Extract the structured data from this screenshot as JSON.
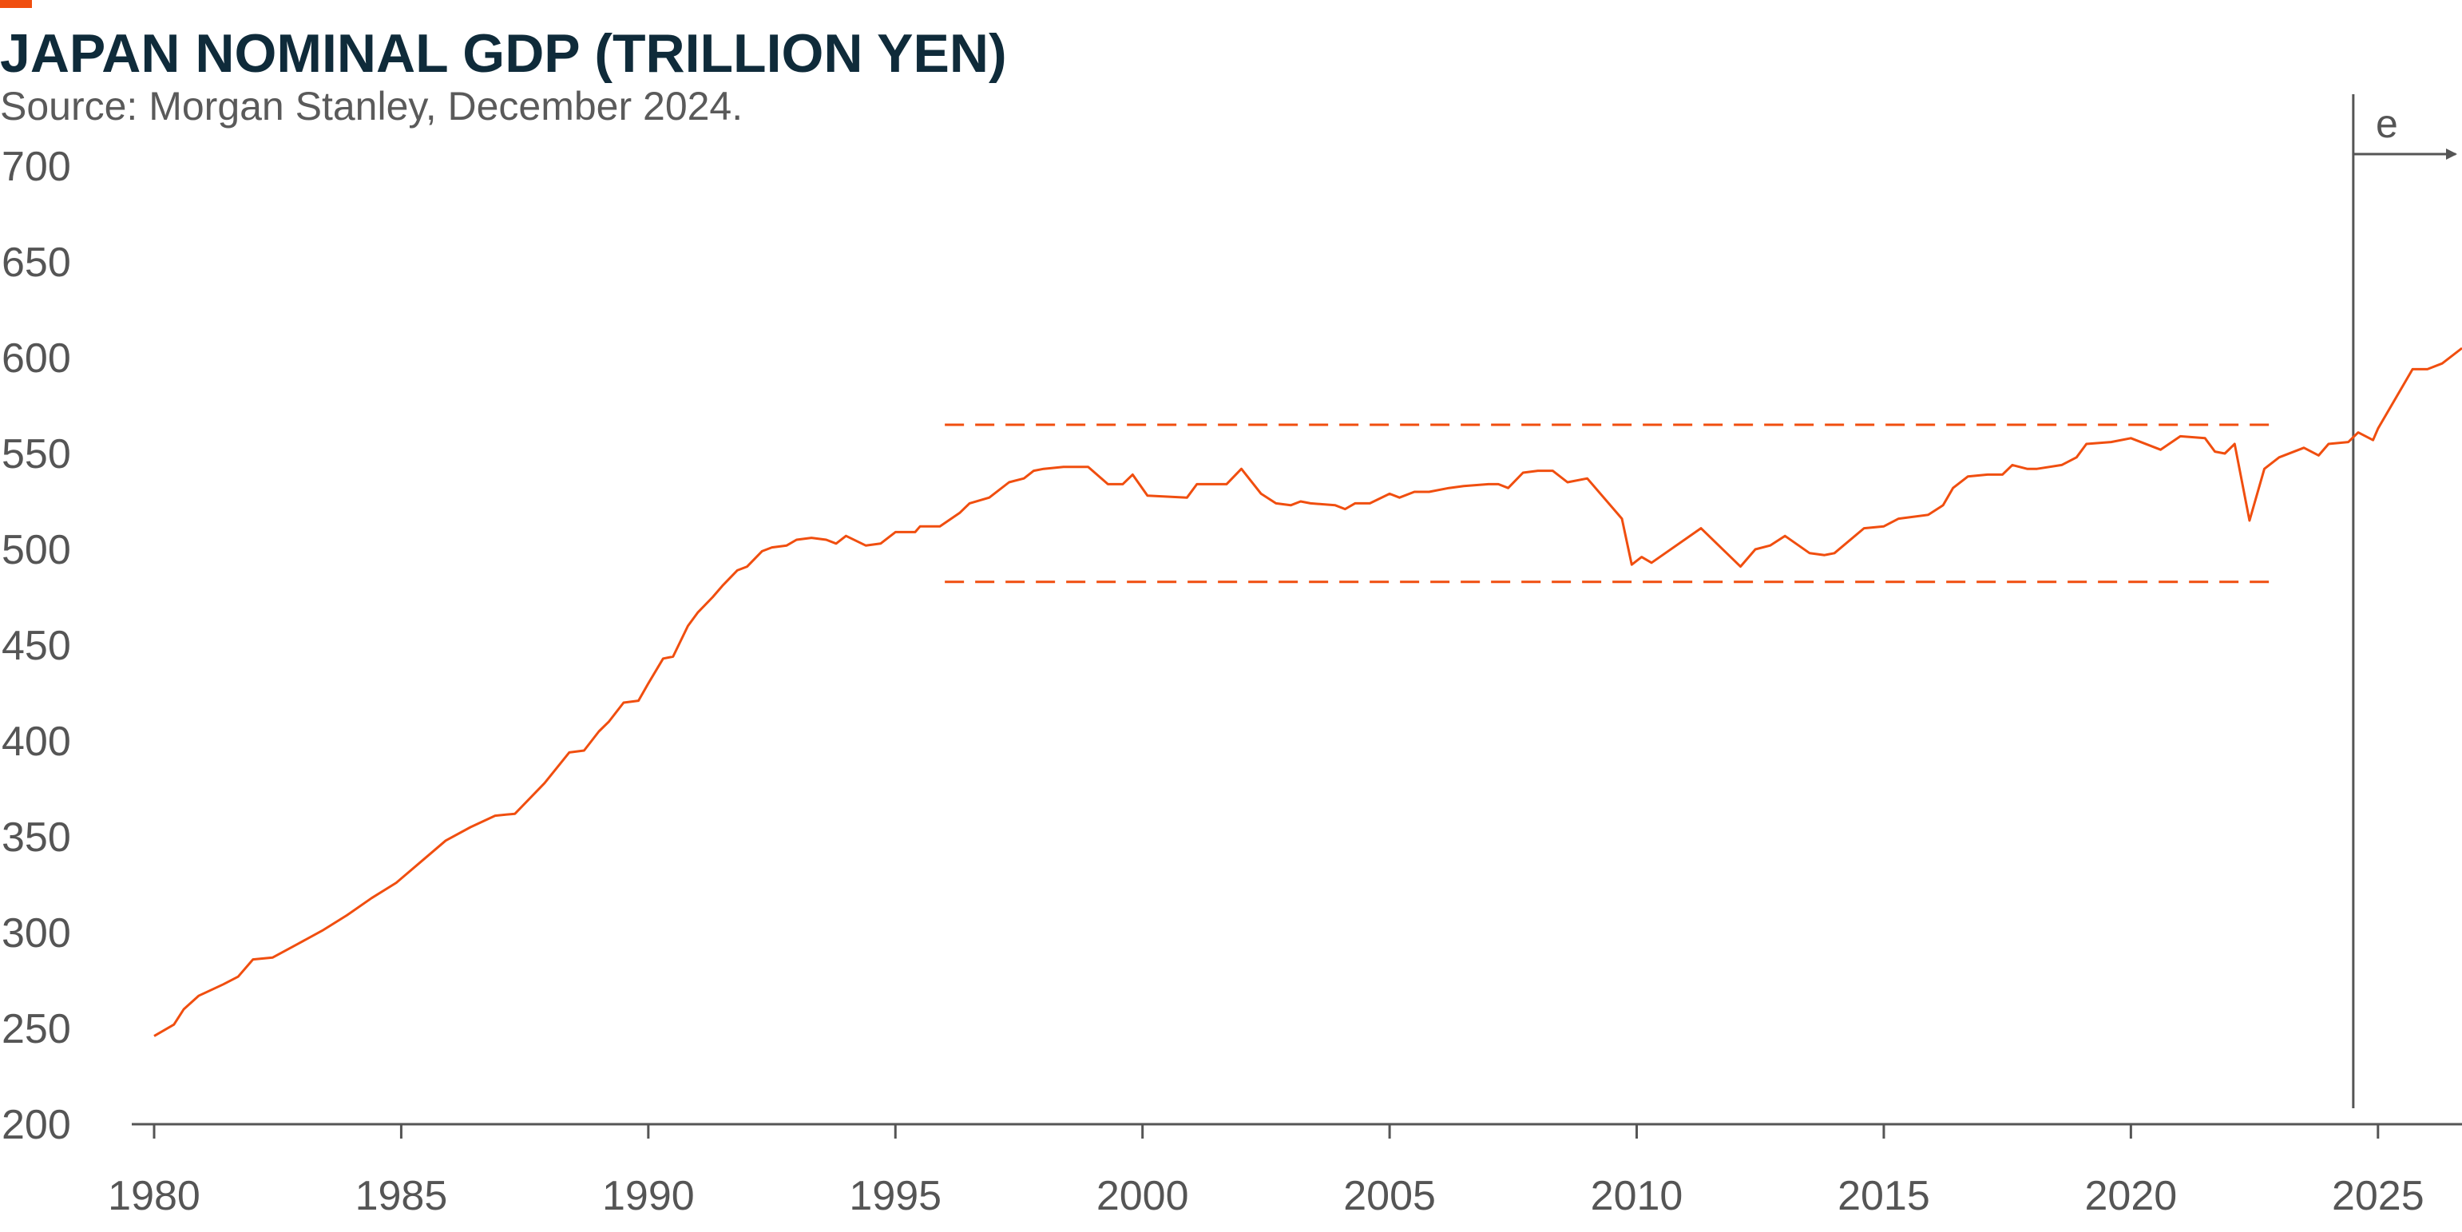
{
  "title": "JAPAN NOMINAL GDP (TRILLION YEN)",
  "subtitle": "Source: Morgan Stanley, December 2024.",
  "colors": {
    "accent": "#f04e0f",
    "series": "#f04e0f",
    "title": "#0f2b3a",
    "axis": "#555555"
  },
  "chart_data": {
    "type": "line",
    "title": "JAPAN NOMINAL GDP (TRILLION YEN)",
    "xlabel": "",
    "ylabel": "",
    "xlim": [
      1980,
      2026.7
    ],
    "ylim": [
      200,
      700
    ],
    "x_ticks": [
      "1980",
      "1985",
      "1990",
      "1995",
      "2000",
      "2005",
      "2010",
      "2015",
      "2020",
      "2025"
    ],
    "y_ticks": [
      "700",
      "650",
      "600",
      "550",
      "500",
      "450",
      "400",
      "350",
      "300",
      "250",
      "200"
    ],
    "grid": false,
    "legend": "none",
    "series": [
      {
        "values": [
          [
            1980.0,
            246
          ],
          [
            1980.4,
            252
          ],
          [
            1980.6,
            260
          ],
          [
            1980.9,
            267
          ],
          [
            1981.4,
            273
          ],
          [
            1981.7,
            277
          ],
          [
            1982.0,
            286
          ],
          [
            1982.4,
            287
          ],
          [
            1982.9,
            294
          ],
          [
            1983.4,
            301
          ],
          [
            1983.9,
            309
          ],
          [
            1984.4,
            318
          ],
          [
            1984.9,
            326
          ],
          [
            1985.4,
            337
          ],
          [
            1985.9,
            348
          ],
          [
            1986.4,
            355
          ],
          [
            1986.9,
            361
          ],
          [
            1987.3,
            362
          ],
          [
            1987.9,
            378
          ],
          [
            1988.4,
            394
          ],
          [
            1988.7,
            395
          ],
          [
            1989.0,
            405
          ],
          [
            1989.2,
            410
          ],
          [
            1989.5,
            420
          ],
          [
            1989.8,
            421
          ],
          [
            1990.0,
            430
          ],
          [
            1990.3,
            443
          ],
          [
            1990.5,
            444
          ],
          [
            1990.8,
            460
          ],
          [
            1991.0,
            467
          ],
          [
            1991.3,
            475
          ],
          [
            1991.5,
            481
          ],
          [
            1991.8,
            489
          ],
          [
            1992.0,
            491
          ],
          [
            1992.3,
            499
          ],
          [
            1992.5,
            501
          ],
          [
            1992.8,
            502
          ],
          [
            1993.0,
            505
          ],
          [
            1993.3,
            506
          ],
          [
            1993.6,
            505
          ],
          [
            1993.8,
            503
          ],
          [
            1994.0,
            507
          ],
          [
            1994.4,
            502
          ],
          [
            1994.7,
            503
          ],
          [
            1995.0,
            509
          ],
          [
            1995.4,
            509
          ],
          [
            1995.5,
            512
          ],
          [
            1995.9,
            512
          ],
          [
            1996.3,
            519
          ],
          [
            1996.5,
            524
          ],
          [
            1996.9,
            527
          ],
          [
            1997.3,
            535
          ],
          [
            1997.6,
            537
          ],
          [
            1997.8,
            541
          ],
          [
            1998.0,
            542
          ],
          [
            1998.4,
            543
          ],
          [
            1998.9,
            543
          ],
          [
            1999.3,
            534
          ],
          [
            1999.6,
            534
          ],
          [
            1999.8,
            539
          ],
          [
            2000.1,
            528
          ],
          [
            2000.9,
            527
          ],
          [
            2001.1,
            534
          ],
          [
            2001.7,
            534
          ],
          [
            2002.0,
            542
          ],
          [
            2002.4,
            529
          ],
          [
            2002.7,
            524
          ],
          [
            2003.0,
            523
          ],
          [
            2003.2,
            525
          ],
          [
            2003.4,
            524
          ],
          [
            2003.9,
            523
          ],
          [
            2004.1,
            521
          ],
          [
            2004.3,
            524
          ],
          [
            2004.6,
            524
          ],
          [
            2005.0,
            529
          ],
          [
            2005.2,
            527
          ],
          [
            2005.5,
            530
          ],
          [
            2005.8,
            530
          ],
          [
            2006.2,
            532
          ],
          [
            2006.5,
            533
          ],
          [
            2007.0,
            534
          ],
          [
            2007.2,
            534
          ],
          [
            2007.4,
            532
          ],
          [
            2007.7,
            540
          ],
          [
            2008.0,
            541
          ],
          [
            2008.3,
            541
          ],
          [
            2008.6,
            535
          ],
          [
            2009.0,
            537
          ],
          [
            2009.7,
            516
          ],
          [
            2009.9,
            492
          ],
          [
            2010.1,
            496
          ],
          [
            2010.3,
            493
          ],
          [
            2011.3,
            511
          ],
          [
            2012.1,
            491
          ],
          [
            2012.4,
            500
          ],
          [
            2012.7,
            502
          ],
          [
            2013.0,
            507
          ],
          [
            2013.5,
            498
          ],
          [
            2013.8,
            497
          ],
          [
            2014.0,
            498
          ],
          [
            2014.6,
            511
          ],
          [
            2015.0,
            512
          ],
          [
            2015.3,
            516
          ],
          [
            2015.9,
            518
          ],
          [
            2016.2,
            523
          ],
          [
            2016.4,
            532
          ],
          [
            2016.7,
            538
          ],
          [
            2017.1,
            539
          ],
          [
            2017.4,
            539
          ],
          [
            2017.6,
            544
          ],
          [
            2017.9,
            542
          ],
          [
            2018.1,
            542
          ],
          [
            2018.6,
            544
          ],
          [
            2018.9,
            548
          ],
          [
            2019.1,
            555
          ],
          [
            2019.6,
            556
          ],
          [
            2020.0,
            558
          ],
          [
            2020.6,
            552
          ],
          [
            2021.0,
            559
          ],
          [
            2021.5,
            558
          ],
          [
            2021.7,
            551
          ],
          [
            2021.9,
            550
          ],
          [
            2022.1,
            555
          ],
          [
            2022.4,
            515
          ],
          [
            2022.7,
            542
          ],
          [
            2023.0,
            548
          ],
          [
            2023.5,
            553
          ],
          [
            2023.8,
            549
          ],
          [
            2024.0,
            555
          ],
          [
            2024.4,
            556
          ],
          [
            2024.6,
            561
          ],
          [
            2024.9,
            557
          ],
          [
            2025.0,
            563
          ],
          [
            2025.7,
            594
          ],
          [
            2026.0,
            594
          ],
          [
            2026.3,
            597
          ],
          [
            2026.7,
            605
          ]
        ]
      }
    ],
    "annotations": [
      {
        "type": "hline",
        "y": 565,
        "x_from": 1996.0,
        "x_to": 2022.8,
        "style": "dashed"
      },
      {
        "type": "hline",
        "y": 483,
        "x_from": 1996.0,
        "x_to": 2022.8,
        "style": "dashed"
      },
      {
        "type": "vline",
        "x": 2024.5,
        "label": "e",
        "arrow": "right"
      }
    ]
  }
}
